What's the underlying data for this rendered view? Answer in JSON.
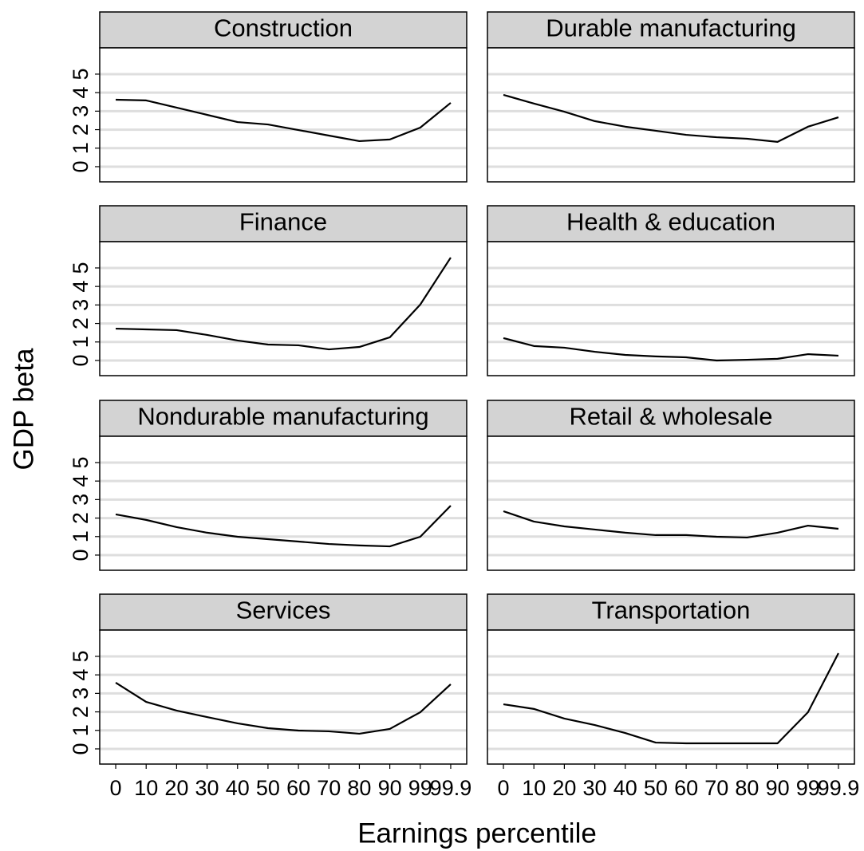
{
  "x_label": "Earnings percentile",
  "y_label": "GDP beta",
  "chart_data": [
    {
      "type": "line",
      "title": "Construction",
      "color": "#000000",
      "grid": true,
      "categories": [
        "0",
        "10",
        "20",
        "30",
        "40",
        "50",
        "60",
        "70",
        "80",
        "90",
        "99",
        "99.9"
      ],
      "values": [
        3.62,
        3.58,
        3.19,
        2.8,
        2.41,
        2.28,
        1.98,
        1.68,
        1.38,
        1.47,
        2.11,
        3.45
      ],
      "ylim": [
        -0.82,
        6.42
      ],
      "yticks": [
        0,
        1,
        2,
        3,
        4,
        5
      ]
    },
    {
      "type": "line",
      "title": "Durable manufacturing",
      "color": "#000000",
      "grid": true,
      "categories": [
        "0",
        "10",
        "20",
        "30",
        "40",
        "50",
        "60",
        "70",
        "80",
        "90",
        "99",
        "99.9"
      ],
      "values": [
        3.88,
        3.41,
        2.97,
        2.46,
        2.16,
        1.94,
        1.72,
        1.59,
        1.51,
        1.34,
        2.16,
        2.67
      ],
      "ylim": [
        -0.82,
        6.42
      ],
      "yticks": [
        0,
        1,
        2,
        3,
        4,
        5
      ]
    },
    {
      "type": "line",
      "title": "Finance",
      "color": "#000000",
      "grid": true,
      "categories": [
        "0",
        "10",
        "20",
        "30",
        "40",
        "50",
        "60",
        "70",
        "80",
        "90",
        "99",
        "99.9"
      ],
      "values": [
        1.72,
        1.68,
        1.64,
        1.38,
        1.08,
        0.86,
        0.82,
        0.6,
        0.73,
        1.25,
        3.02,
        5.56
      ],
      "ylim": [
        -0.82,
        6.42
      ],
      "yticks": [
        0,
        1,
        2,
        3,
        4,
        5
      ]
    },
    {
      "type": "line",
      "title": "Health & education",
      "color": "#000000",
      "grid": true,
      "categories": [
        "0",
        "10",
        "20",
        "30",
        "40",
        "50",
        "60",
        "70",
        "80",
        "90",
        "99",
        "99.9"
      ],
      "values": [
        1.21,
        0.78,
        0.69,
        0.47,
        0.3,
        0.22,
        0.17,
        0,
        0.04,
        0.09,
        0.34,
        0.26
      ],
      "ylim": [
        -0.82,
        6.42
      ],
      "yticks": [
        0,
        1,
        2,
        3,
        4,
        5
      ]
    },
    {
      "type": "line",
      "title": "Nondurable manufacturing",
      "color": "#000000",
      "grid": true,
      "categories": [
        "0",
        "10",
        "20",
        "30",
        "40",
        "50",
        "60",
        "70",
        "80",
        "90",
        "99",
        "99.9"
      ],
      "values": [
        2.2,
        1.9,
        1.51,
        1.21,
        0.99,
        0.86,
        0.73,
        0.6,
        0.52,
        0.47,
        0.99,
        2.67
      ],
      "ylim": [
        -0.82,
        6.42
      ],
      "yticks": [
        0,
        1,
        2,
        3,
        4,
        5
      ]
    },
    {
      "type": "line",
      "title": "Retail & wholesale",
      "color": "#000000",
      "grid": true,
      "categories": [
        "0",
        "10",
        "20",
        "30",
        "40",
        "50",
        "60",
        "70",
        "80",
        "90",
        "99",
        "99.9"
      ],
      "values": [
        2.37,
        1.81,
        1.55,
        1.38,
        1.21,
        1.08,
        1.08,
        0.99,
        0.95,
        1.21,
        1.59,
        1.42
      ],
      "ylim": [
        -0.82,
        6.42
      ],
      "yticks": [
        0,
        1,
        2,
        3,
        4,
        5
      ]
    },
    {
      "type": "line",
      "title": "Services",
      "color": "#000000",
      "grid": true,
      "categories": [
        "0",
        "10",
        "20",
        "30",
        "40",
        "50",
        "60",
        "70",
        "80",
        "90",
        "99",
        "99.9"
      ],
      "values": [
        3.58,
        2.54,
        2.07,
        1.72,
        1.38,
        1.12,
        0.99,
        0.95,
        0.82,
        1.08,
        1.98,
        3.49
      ],
      "ylim": [
        -0.82,
        6.42
      ],
      "yticks": [
        0,
        1,
        2,
        3,
        4,
        5
      ]
    },
    {
      "type": "line",
      "title": "Transportation",
      "color": "#000000",
      "grid": true,
      "categories": [
        "0",
        "10",
        "20",
        "30",
        "40",
        "50",
        "60",
        "70",
        "80",
        "90",
        "99",
        "99.9"
      ],
      "values": [
        2.41,
        2.16,
        1.64,
        1.29,
        0.86,
        0.34,
        0.3,
        0.3,
        0.3,
        0.3,
        1.98,
        5.17
      ],
      "ylim": [
        -0.82,
        6.42
      ],
      "yticks": [
        0,
        1,
        2,
        3,
        4,
        5
      ]
    }
  ]
}
